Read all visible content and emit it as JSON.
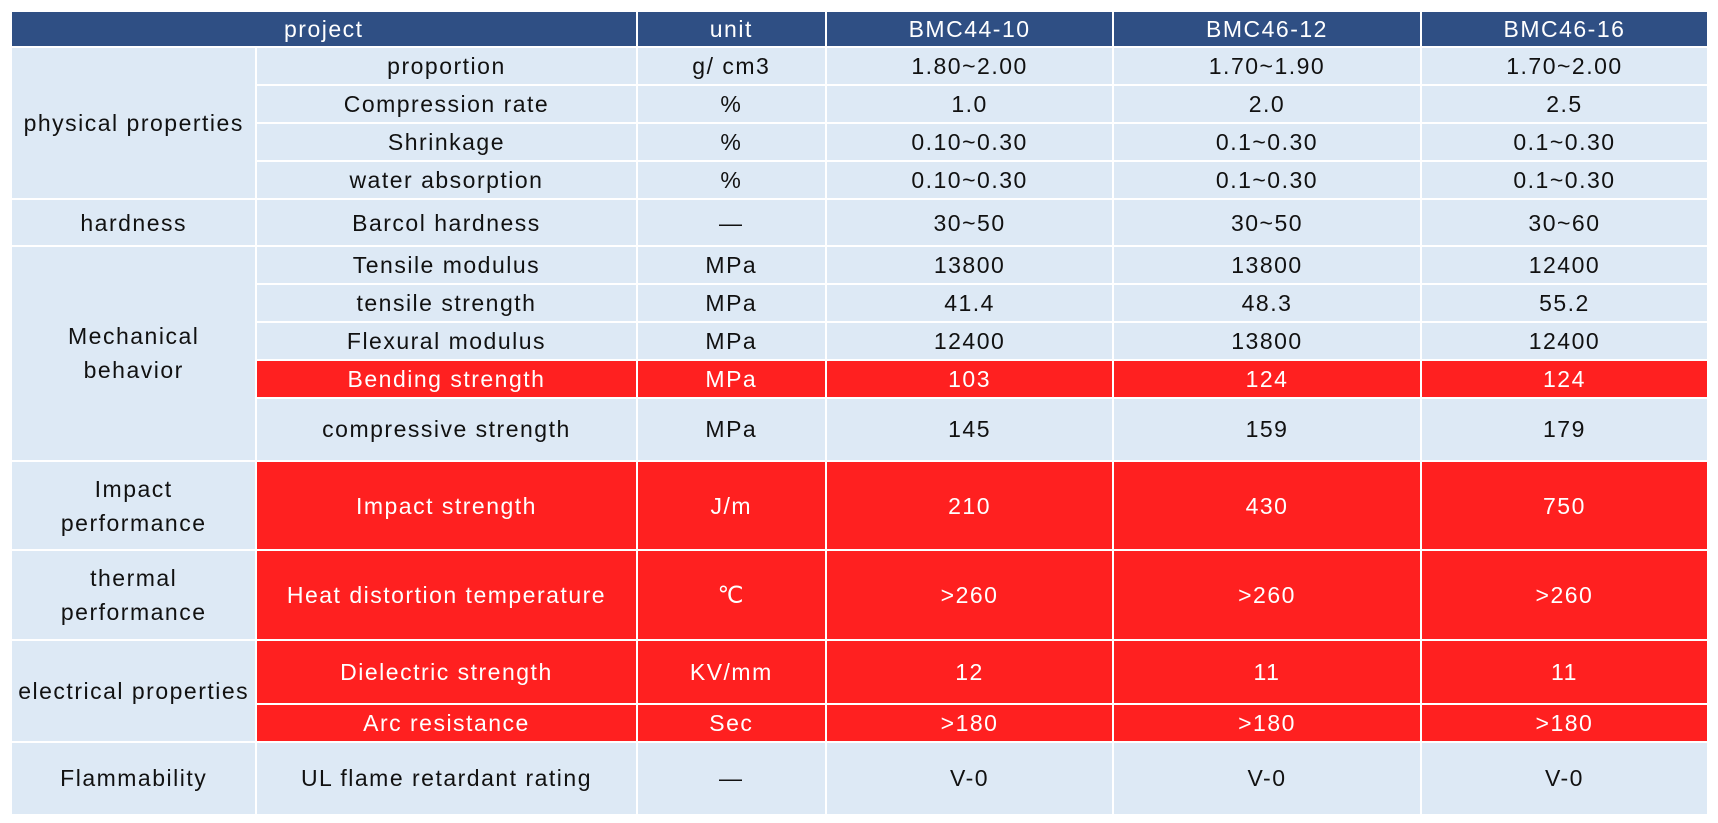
{
  "header": {
    "project": "project",
    "unit": "unit",
    "grades": [
      "BMC44-10",
      "BMC46-12",
      "BMC46-16"
    ]
  },
  "groups": {
    "physical": "physical properties",
    "hardness": "hardness",
    "mechanical": "Mechanical behavior",
    "impact": "Impact performance",
    "thermal": "thermal performance",
    "electrical": "electrical properties",
    "flammability": "Flammability"
  },
  "rows": [
    {
      "property": "proportion",
      "unit": "g/ cm3",
      "values": [
        "1.80~2.00",
        "1.70~1.90",
        "1.70~2.00"
      ]
    },
    {
      "property": "Compression rate",
      "unit": "%",
      "values": [
        "1.0",
        "2.0",
        "2.5"
      ]
    },
    {
      "property": "Shrinkage",
      "unit": "%",
      "values": [
        "0.10~0.30",
        "0.1~0.30",
        "0.1~0.30"
      ]
    },
    {
      "property": "water absorption",
      "unit": "%",
      "values": [
        "0.10~0.30",
        "0.1~0.30",
        "0.1~0.30"
      ]
    },
    {
      "property": "Barcol hardness",
      "unit": "—",
      "values": [
        "30~50",
        "30~50",
        "30~60"
      ]
    },
    {
      "property": "Tensile modulus",
      "unit": "MPa",
      "values": [
        "13800",
        "13800",
        "12400"
      ]
    },
    {
      "property": "tensile strength",
      "unit": "MPa",
      "values": [
        "41.4",
        "48.3",
        "55.2"
      ]
    },
    {
      "property": "Flexural modulus",
      "unit": "MPa",
      "values": [
        "12400",
        "13800",
        "12400"
      ]
    },
    {
      "property": "Bending strength",
      "unit": "MPa",
      "values": [
        "103",
        "124",
        "124"
      ]
    },
    {
      "property": "compressive strength",
      "unit": "MPa",
      "values": [
        "145",
        "159",
        "179"
      ]
    },
    {
      "property": "Impact strength",
      "unit": "J/m",
      "values": [
        "210",
        "430",
        "750"
      ]
    },
    {
      "property": "Heat distortion temperature",
      "unit": "℃",
      "values": [
        ">260",
        ">260",
        ">260"
      ]
    },
    {
      "property": "Dielectric strength",
      "unit": "KV/mm",
      "values": [
        "12",
        "11",
        "11"
      ]
    },
    {
      "property": "Arc resistance",
      "unit": "Sec",
      "values": [
        ">180",
        ">180",
        ">180"
      ]
    },
    {
      "property": "UL flame retardant rating",
      "unit": "—",
      "values": [
        "V-0",
        "V-0",
        "V-0"
      ]
    }
  ],
  "colors": {
    "header_bg": "#2f4f84",
    "cell_bg": "#dde9f5",
    "highlight_bg": "#ff2020"
  }
}
